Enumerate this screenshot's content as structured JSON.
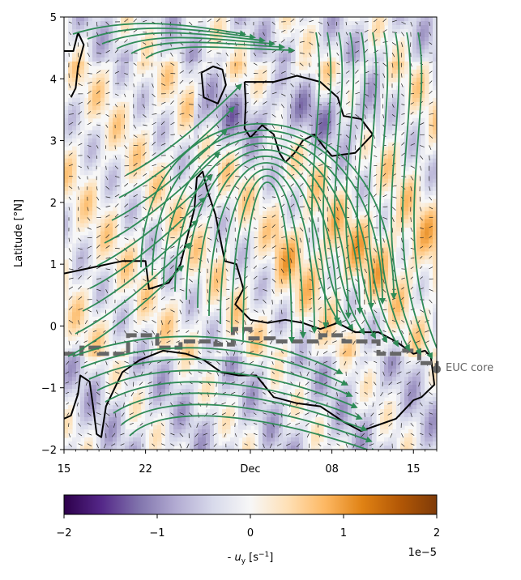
{
  "chart_data": {
    "type": "heatmap",
    "ylabel": "Latitude [°N]",
    "x_tick_labels": [
      "15",
      "22",
      "Dec",
      "08",
      "15"
    ],
    "x_tick_days": [
      0,
      7,
      16,
      23,
      30
    ],
    "xlim_days": [
      0,
      32
    ],
    "ylim": [
      -2,
      5
    ],
    "y_ticks": [
      -2,
      -1,
      0,
      1,
      2,
      3,
      4,
      5
    ],
    "colorbar": {
      "label": "- u_y [s^-1]",
      "label_prefix": "- ",
      "label_var": "u",
      "label_sub": "y",
      "label_unit_open": " [s",
      "label_unit_exp": "−1",
      "label_unit_close": "]",
      "ticks": [
        -2,
        -1,
        0,
        1,
        2
      ],
      "tick_labels": [
        "−2",
        "−1",
        "0",
        "1",
        "2"
      ],
      "offset_text": "1e−5",
      "range": [
        -2,
        2
      ],
      "colormap": "PuOr_r",
      "colors": [
        "#2d004b",
        "#542788",
        "#8073ac",
        "#b2abd2",
        "#d8daeb",
        "#f7f7f7",
        "#fee0b6",
        "#fdb863",
        "#e08214",
        "#b35806",
        "#7f3b08"
      ]
    },
    "annotation": "EUC core",
    "euc_core_latitude_steps": [
      {
        "day": 0,
        "lat": -0.45
      },
      {
        "day": 1.5,
        "lat": -0.35
      },
      {
        "day": 3,
        "lat": -0.45
      },
      {
        "day": 5.5,
        "lat": -0.15
      },
      {
        "day": 8,
        "lat": -0.35
      },
      {
        "day": 10,
        "lat": -0.25
      },
      {
        "day": 13,
        "lat": -0.3
      },
      {
        "day": 14.5,
        "lat": -0.05
      },
      {
        "day": 16,
        "lat": -0.2
      },
      {
        "day": 18,
        "lat": -0.25
      },
      {
        "day": 22,
        "lat": -0.15
      },
      {
        "day": 24,
        "lat": -0.25
      },
      {
        "day": 27,
        "lat": -0.45
      },
      {
        "day": 29,
        "lat": -0.4
      },
      {
        "day": 30.5,
        "lat": -0.6
      },
      {
        "day": 32,
        "lat": -0.7
      }
    ],
    "zero_contour_lines": [
      [
        [
          0,
          4.45
        ],
        [
          0.8,
          4.45
        ],
        [
          1.2,
          4.75
        ],
        [
          1.7,
          4.55
        ],
        [
          1.2,
          4.2
        ],
        [
          1.0,
          3.85
        ],
        [
          0.6,
          3.7
        ]
      ],
      [
        [
          11.8,
          4.1
        ],
        [
          12.8,
          4.2
        ],
        [
          13.6,
          4.15
        ],
        [
          13.9,
          3.9
        ],
        [
          13.2,
          3.6
        ],
        [
          12.0,
          3.7
        ],
        [
          11.8,
          4.1
        ]
      ],
      [
        [
          15.5,
          3.95
        ],
        [
          18,
          3.95
        ],
        [
          20,
          4.05
        ],
        [
          22,
          3.95
        ],
        [
          23.5,
          3.7
        ],
        [
          24,
          3.4
        ],
        [
          25.5,
          3.35
        ],
        [
          26.5,
          3.1
        ],
        [
          25,
          2.8
        ],
        [
          23,
          2.75
        ],
        [
          22.3,
          2.9
        ],
        [
          21.5,
          3.1
        ],
        [
          20.5,
          3.0
        ],
        [
          19.8,
          2.8
        ],
        [
          19,
          2.65
        ],
        [
          18.5,
          2.8
        ],
        [
          18,
          3.1
        ],
        [
          17,
          3.25
        ],
        [
          16,
          3.05
        ],
        [
          15.5,
          3.2
        ],
        [
          15.6,
          3.6
        ],
        [
          15.5,
          3.95
        ]
      ],
      [
        [
          0,
          0.85
        ],
        [
          2.5,
          0.95
        ],
        [
          5,
          1.05
        ],
        [
          7,
          1.05
        ],
        [
          7.3,
          0.6
        ],
        [
          9,
          0.7
        ],
        [
          10,
          1.0
        ],
        [
          11.2,
          1.9
        ],
        [
          11.4,
          2.4
        ],
        [
          11.9,
          2.5
        ],
        [
          12.3,
          2.2
        ],
        [
          13,
          1.8
        ],
        [
          13.8,
          1.05
        ],
        [
          14.8,
          1.0
        ],
        [
          15.4,
          0.6
        ],
        [
          14.7,
          0.35
        ],
        [
          16,
          0.1
        ],
        [
          17.5,
          0.05
        ],
        [
          19,
          0.1
        ],
        [
          20.5,
          0.05
        ],
        [
          22,
          -0.05
        ],
        [
          23.5,
          0.05
        ],
        [
          25,
          -0.1
        ],
        [
          27,
          -0.1
        ],
        [
          28.5,
          -0.25
        ],
        [
          30,
          -0.45
        ],
        [
          31,
          -0.4
        ],
        [
          31.5,
          -0.5
        ],
        [
          31.8,
          -0.95
        ],
        [
          30.7,
          -1.15
        ],
        [
          30,
          -1.2
        ],
        [
          28.5,
          -1.5
        ],
        [
          27,
          -1.6
        ],
        [
          25.5,
          -1.7
        ],
        [
          24,
          -1.55
        ],
        [
          22,
          -1.3
        ],
        [
          20,
          -1.25
        ],
        [
          18,
          -1.15
        ],
        [
          16.5,
          -0.8
        ],
        [
          15,
          -0.8
        ],
        [
          13.5,
          -0.75
        ],
        [
          12,
          -0.55
        ],
        [
          10.5,
          -0.45
        ],
        [
          8.5,
          -0.4
        ],
        [
          6.5,
          -0.55
        ],
        [
          5,
          -0.75
        ],
        [
          3.6,
          -1.3
        ],
        [
          3.2,
          -1.8
        ],
        [
          2.8,
          -1.75
        ],
        [
          2.5,
          -1.3
        ],
        [
          2.2,
          -0.9
        ],
        [
          1.4,
          -0.8
        ],
        [
          1.2,
          -1.1
        ],
        [
          0.6,
          -1.45
        ],
        [
          0,
          -1.5
        ]
      ]
    ]
  }
}
